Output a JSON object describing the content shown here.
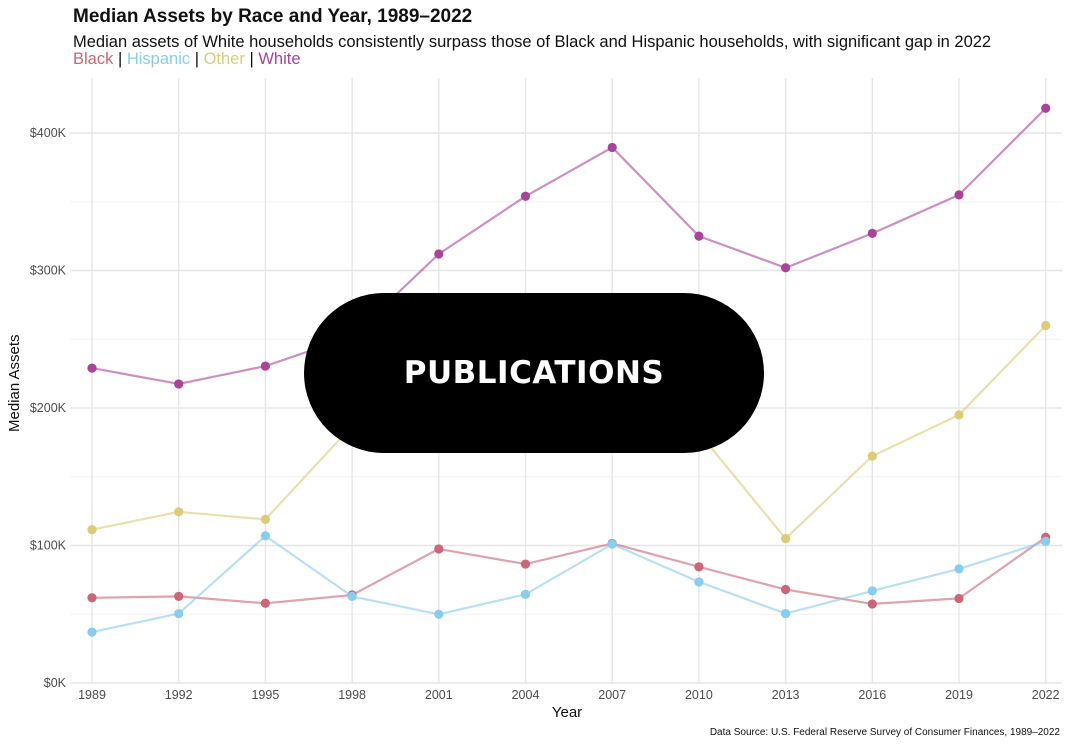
{
  "header": {
    "title": "Median Assets by Race and Year, 1989–2022",
    "subtitle": "Median assets of White households consistently surpass those of Black and Hispanic households, with significant gap in 2022"
  },
  "legend": {
    "black": "Black",
    "hispanic": "Hispanic",
    "other": "Other",
    "white": "White",
    "separator": " | "
  },
  "overlay": {
    "label": "PUBLICATIONS"
  },
  "footer": {
    "source": "Data Source: U.S. Federal Reserve Survey of Consumer Finances, 1989–2022"
  },
  "chart_data": {
    "type": "line",
    "xlabel": "Year",
    "ylabel": "Median Assets",
    "x": [
      1989,
      1992,
      1995,
      1998,
      2001,
      2004,
      2007,
      2010,
      2013,
      2016,
      2019,
      2022
    ],
    "ylim": [
      0,
      440000
    ],
    "yticks": [
      0,
      100000,
      200000,
      300000,
      400000
    ],
    "ytick_labels": [
      "$0K",
      "$100K",
      "$200K",
      "$300K",
      "$400K"
    ],
    "grid": true,
    "legend_position": "top-left",
    "series": [
      {
        "name": "Black",
        "color": "#cc6677",
        "values": [
          62000,
          63000,
          58000,
          64000,
          97500,
          86500,
          101500,
          84500,
          68000,
          57500,
          61500,
          106000
        ]
      },
      {
        "name": "Hispanic",
        "color": "#88ccee",
        "values": [
          37000,
          50500,
          107000,
          63000,
          50000,
          64500,
          101000,
          73500,
          50500,
          67000,
          83000,
          103000
        ]
      },
      {
        "name": "Other",
        "color": "#ddcc77",
        "values": [
          111500,
          124500,
          119000,
          187000,
          190000,
          205000,
          225000,
          182000,
          105000,
          165000,
          195000,
          260000
        ]
      },
      {
        "name": "White",
        "color": "#aa4499",
        "values": [
          229000,
          217500,
          230500,
          252000,
          312000,
          354000,
          389500,
          325000,
          302000,
          327000,
          355000,
          418000
        ]
      }
    ]
  }
}
